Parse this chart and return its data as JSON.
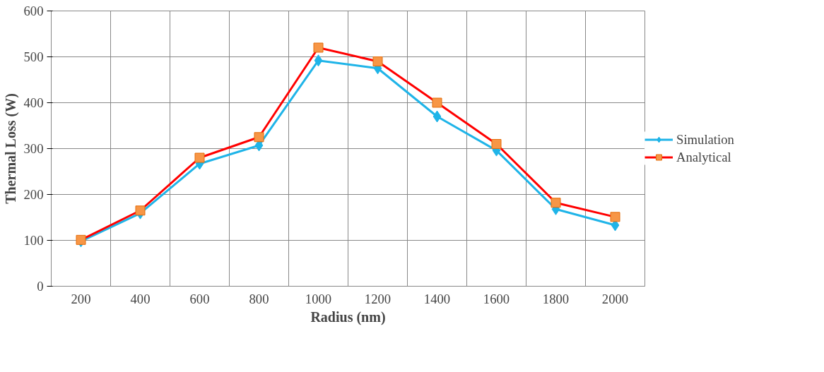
{
  "chart_data": {
    "type": "line",
    "xlabel": "Radius (nm)",
    "ylabel": "Thermal Loss (W)",
    "categories": [
      "200",
      "400",
      "600",
      "800",
      "1000",
      "1200",
      "1400",
      "1600",
      "1800",
      "2000"
    ],
    "series": [
      {
        "name": "Simulation",
        "color": "#1fb4e8",
        "marker": "diamond",
        "values": [
          98,
          159,
          267,
          307,
          492,
          475,
          370,
          296,
          168,
          133
        ]
      },
      {
        "name": "Analytical",
        "color": "#ff0000",
        "marker": "square",
        "values": [
          101,
          165,
          280,
          325,
          520,
          490,
          400,
          310,
          182,
          151
        ]
      }
    ],
    "ylim": [
      0,
      600
    ],
    "yticks": [
      0,
      100,
      200,
      300,
      400,
      500,
      600
    ],
    "grid": true,
    "legend": "right",
    "line_style": "solid"
  }
}
